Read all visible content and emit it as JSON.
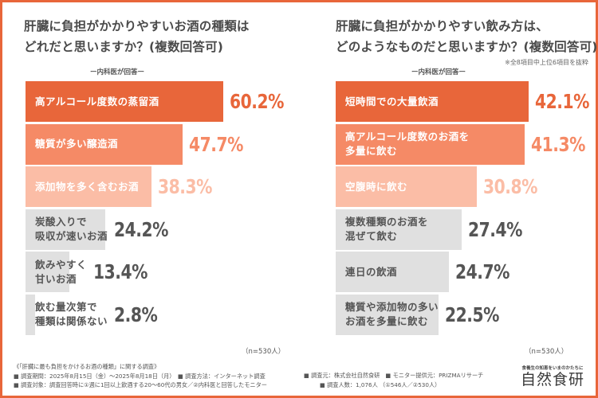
{
  "colors": {
    "frame": "#e8663a",
    "bar_rank1": "#e8663a",
    "bar_rank2": "#f58a66",
    "bar_rank3": "#fbbda6",
    "bar_other": "#e0e0e0",
    "text_dark": "#555555",
    "label_on_color": "#ffffff"
  },
  "chart_data": [
    {
      "type": "bar",
      "orientation": "horizontal",
      "title": "肝臓に負担がかかりやすいお酒の種類はどれだと思いますか？(複数回答可)",
      "title_lines": [
        "肝臓に負担がかかりやすいお酒の種類は",
        "どれだと思いますか？(複数回答可)"
      ],
      "subtitle": "ー内科医が回答ー",
      "note": "",
      "categories": [
        "高アルコール度数の蒸留酒",
        "糖質が多い醸造酒",
        "添加物を多く含むお酒",
        "炭酸入りで\n吸収が速いお酒",
        "飲みやすく\n甘いお酒",
        "飲む量次第で\n種類は関係ない"
      ],
      "values": [
        60.2,
        47.7,
        38.3,
        24.2,
        13.4,
        2.8
      ],
      "value_labels": [
        "60.2%",
        "47.7%",
        "38.3%",
        "24.2%",
        "13.4%",
        "2.8%"
      ],
      "unit": "%",
      "sample": "（n=530人）",
      "xlim": [
        0,
        60.2
      ]
    },
    {
      "type": "bar",
      "orientation": "horizontal",
      "title": "肝臓に負担がかかりやすい飲み方は、どのようなものだと思いますか？(複数回答可)",
      "title_lines": [
        "肝臓に負担がかかりやすい飲み方は、",
        "どのようなものだと思いますか？(複数回答可)"
      ],
      "subtitle": "ー内科医が回答ー",
      "note": "※全8項目中上位6項目を抜粋",
      "categories": [
        "短時間での大量飲酒",
        "高アルコール度数のお酒を\n多量に飲む",
        "空腹時に飲む",
        "複数種類のお酒を\n混ぜて飲む",
        "連日の飲酒",
        "糖質や添加物の多い\nお酒を多量に飲む"
      ],
      "values": [
        42.1,
        41.3,
        30.8,
        27.4,
        24.7,
        22.5
      ],
      "value_labels": [
        "42.1%",
        "41.3%",
        "30.8%",
        "27.4%",
        "24.7%",
        "22.5%"
      ],
      "unit": "%",
      "sample": "（n=530人）",
      "xlim": [
        0,
        42.1
      ]
    }
  ],
  "footer": {
    "survey_title": "《「肝臓に最も負担をかけるお酒の種類」に関する調査》",
    "line1": "■ 調査期間：2025年8月15日（金）～2025年8月18日（月）　■ 調査方法：インターネット調査",
    "line2": "■ 調査対象：調査回答時に①週に1回以上飲酒する20～60代の男女／②内科医と回答したモニター",
    "line3": "■ 調査元：株式会社自然食研　■ モニター提供元：PRIZMAリサーチ",
    "line4": "■ 調査人数：1,076人 （①546人／②530人）"
  },
  "brand": {
    "tagline": "食養生の知恵をいまのかたちに",
    "name": "自然食研"
  }
}
